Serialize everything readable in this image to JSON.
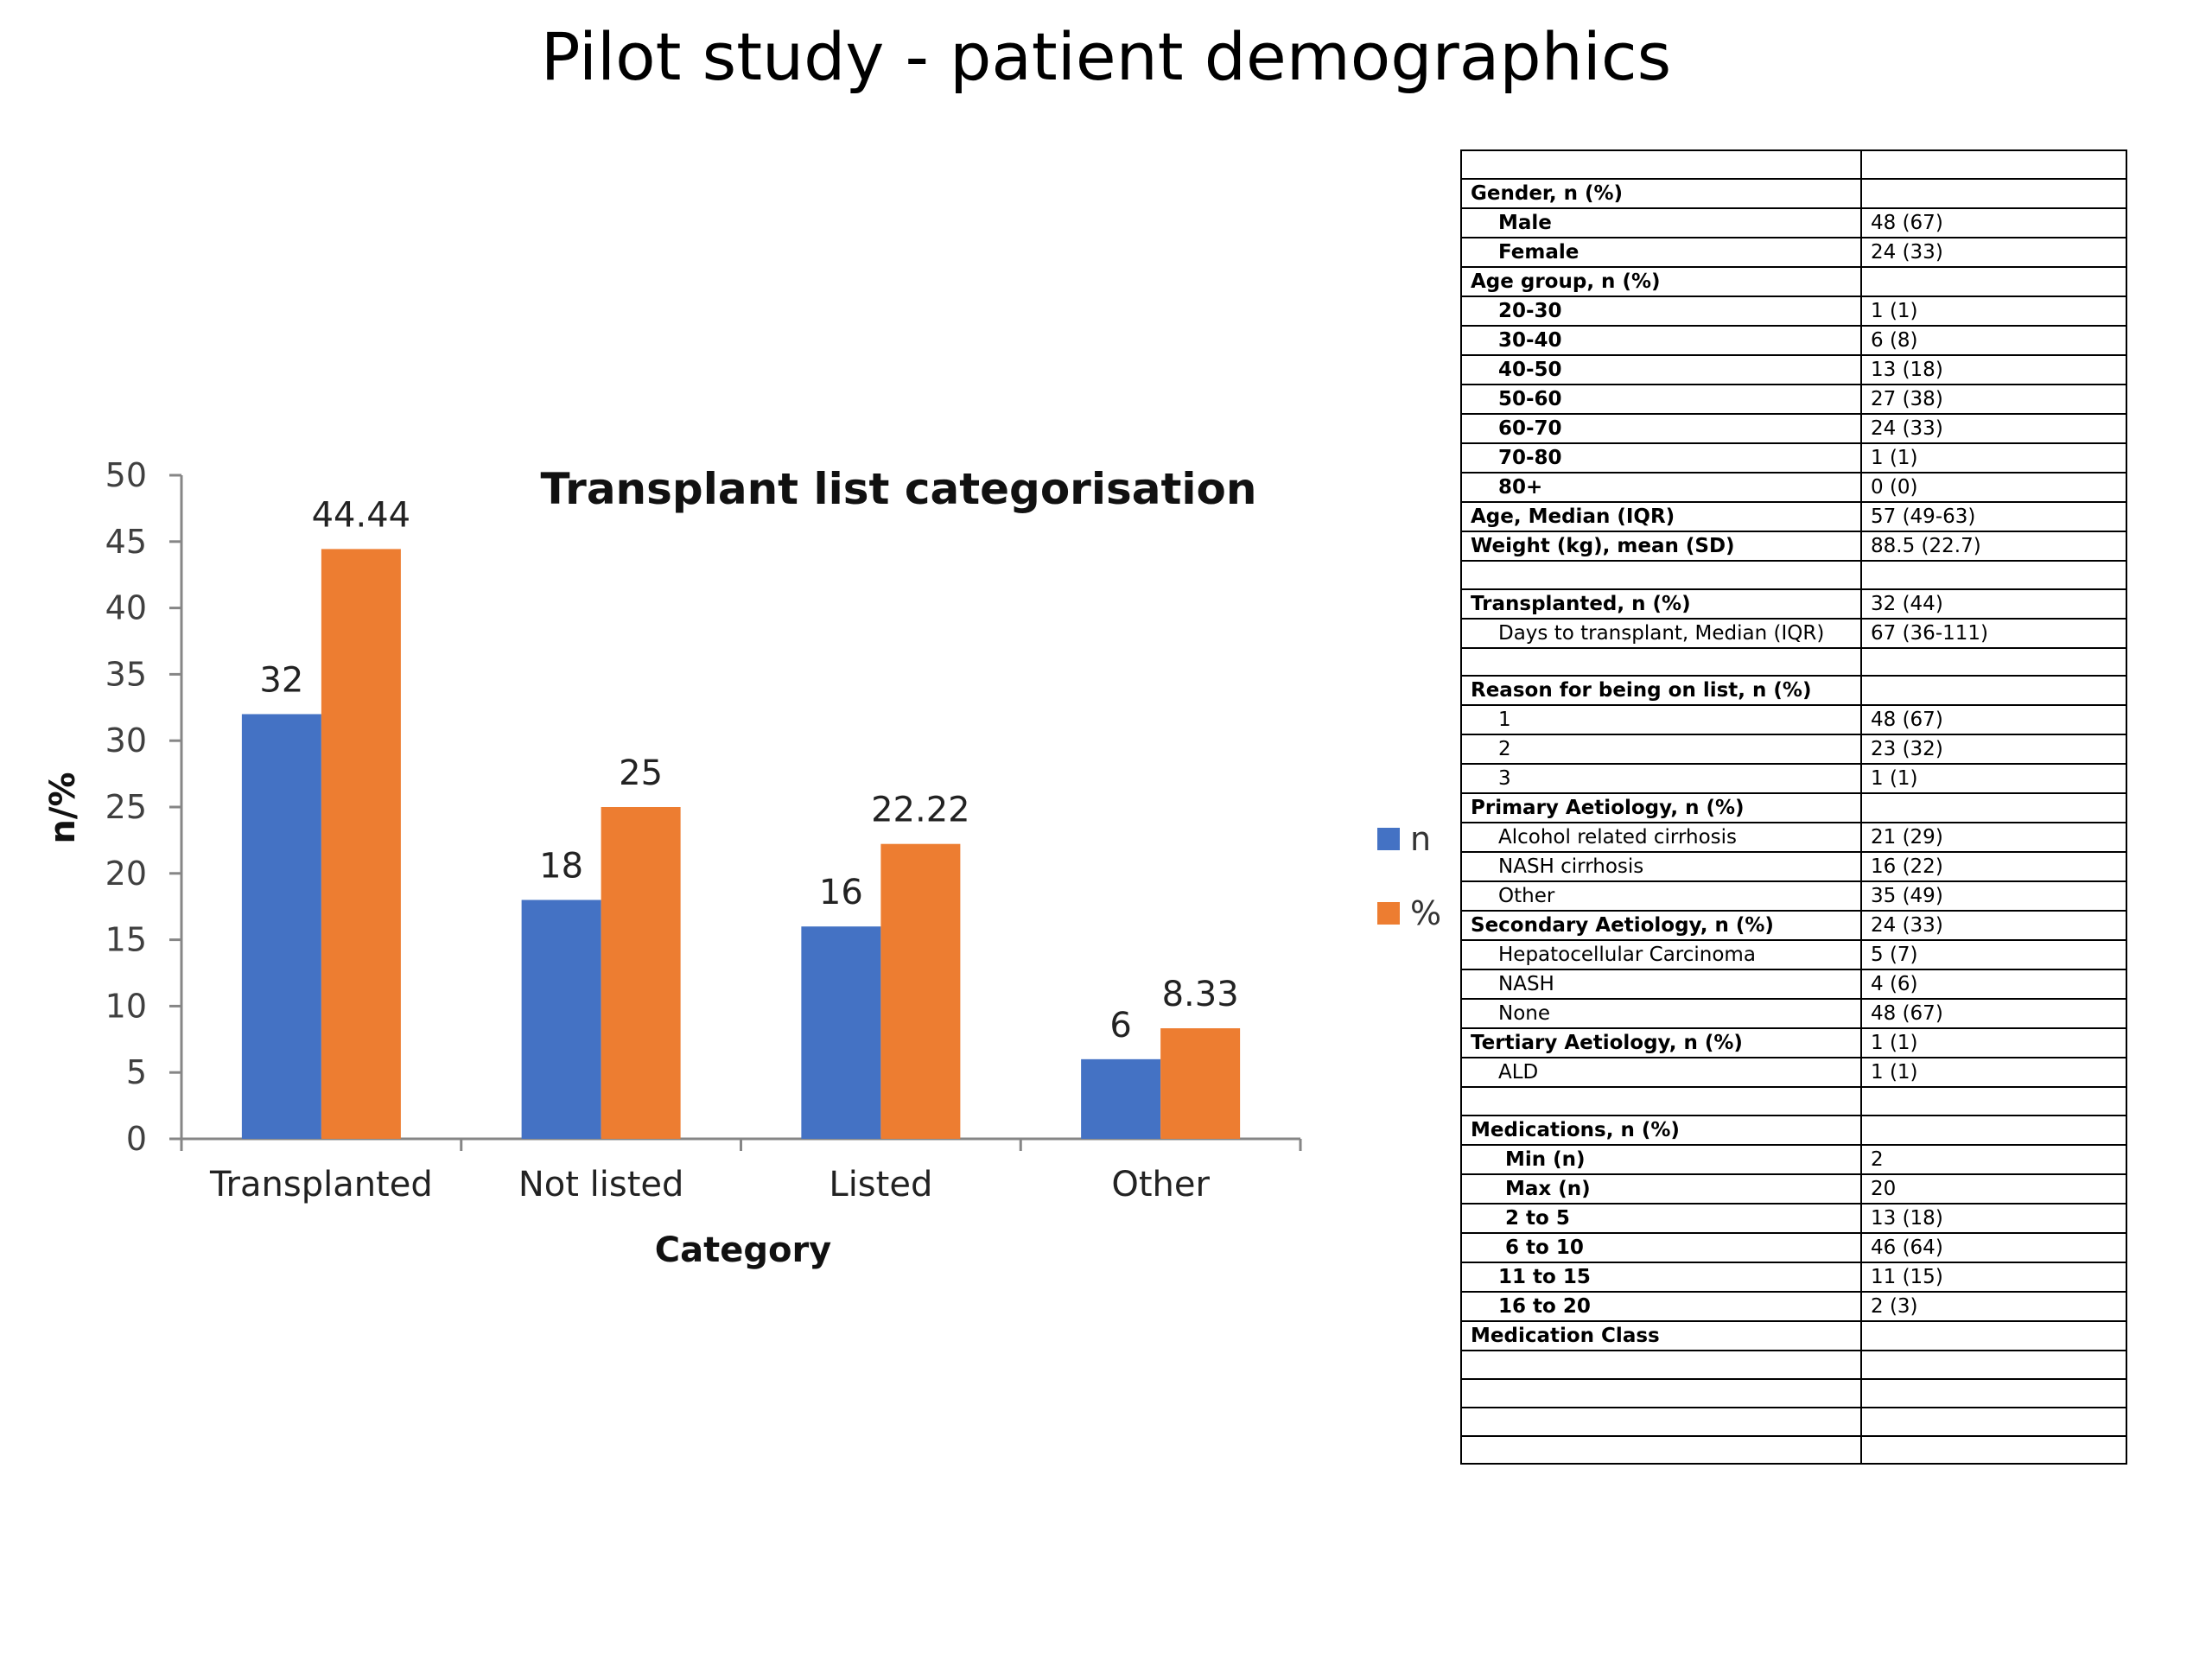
{
  "slide_title": "Pilot study - patient demographics",
  "chart_data": {
    "type": "bar",
    "title": "Transplant list categorisation",
    "xlabel": "Category",
    "ylabel": "n/%",
    "categories": [
      "Transplanted",
      "Not listed",
      "Listed",
      "Other"
    ],
    "series": [
      {
        "name": "n",
        "color": "#4472C4",
        "values": [
          32,
          18,
          16,
          6
        ],
        "labels": [
          "32",
          "18",
          "16",
          "6"
        ]
      },
      {
        "name": "%",
        "color": "#ED7D31",
        "values": [
          44.44,
          25,
          22.22,
          8.33
        ],
        "labels": [
          "44.44",
          "25",
          "22.22",
          "8.33"
        ]
      }
    ],
    "ylim": [
      0,
      50
    ],
    "yticks": [
      0,
      5,
      10,
      15,
      20,
      25,
      30,
      35,
      40,
      45,
      50
    ],
    "grid": false,
    "legend_position": "right"
  },
  "table": {
    "rows": [
      {
        "label": "",
        "value": "",
        "style": "header"
      },
      {
        "label": "Gender, n (%)",
        "value": "",
        "style": "header"
      },
      {
        "label": "Male",
        "value": "48 (67)",
        "style": "bold"
      },
      {
        "label": "Female",
        "value": "24 (33)",
        "style": "bold"
      },
      {
        "label": "Age group, n (%)",
        "value": "",
        "style": "header"
      },
      {
        "label": "20-30",
        "value": "1 (1)",
        "style": "bold"
      },
      {
        "label": "30-40",
        "value": "6 (8)",
        "style": "bold"
      },
      {
        "label": "40-50",
        "value": "13 (18)",
        "style": "bold"
      },
      {
        "label": "50-60",
        "value": "27 (38)",
        "style": "bold"
      },
      {
        "label": "60-70",
        "value": "24 (33)",
        "style": "bold"
      },
      {
        "label": "70-80",
        "value": "1 (1)",
        "style": "bold"
      },
      {
        "label": "80+",
        "value": "0 (0)",
        "style": "bold"
      },
      {
        "label": "Age, Median (IQR)",
        "value": "57 (49-63)",
        "style": "header"
      },
      {
        "label": "Weight (kg), mean (SD)",
        "value": "88.5 (22.7)",
        "style": "header"
      },
      {
        "label": "",
        "value": "",
        "style": "header"
      },
      {
        "label": "Transplanted, n (%)",
        "value": "32 (44)",
        "style": "header"
      },
      {
        "label": "Days to transplant,  Median (IQR)",
        "value": "67 (36-111)",
        "style": "sub"
      },
      {
        "label": "",
        "value": "",
        "style": "header"
      },
      {
        "label": "Reason for being on list, n (%)",
        "value": "",
        "style": "header"
      },
      {
        "label": "1",
        "value": "48 (67)",
        "style": "sub"
      },
      {
        "label": "2",
        "value": "23 (32)",
        "style": "sub"
      },
      {
        "label": "3",
        "value": "1 (1)",
        "style": "sub"
      },
      {
        "label": "Primary Aetiology, n (%)",
        "value": "",
        "style": "header"
      },
      {
        "label": "Alcohol related cirrhosis",
        "value": "21 (29)",
        "style": "sub"
      },
      {
        "label": "NASH cirrhosis",
        "value": "16 (22)",
        "style": "sub"
      },
      {
        "label": "Other",
        "value": "35 (49)",
        "style": "sub"
      },
      {
        "label": "Secondary Aetiology, n (%)",
        "value": "24 (33)",
        "style": "header"
      },
      {
        "label": "Hepatocellular Carcinoma",
        "value": "5 (7)",
        "style": "sub"
      },
      {
        "label": "NASH",
        "value": "4 (6)",
        "style": "sub"
      },
      {
        "label": "None",
        "value": "48 (67)",
        "style": "sub"
      },
      {
        "label": "Tertiary Aetiology, n (%)",
        "value": "1 (1)",
        "style": "header"
      },
      {
        "label": "ALD",
        "value": "1 (1)",
        "style": "sub"
      },
      {
        "label": "",
        "value": "",
        "style": "header"
      },
      {
        "label": "Medications, n (%)",
        "value": "",
        "style": "header"
      },
      {
        "label": "Min (n)",
        "value": "2",
        "style": "bold-tight"
      },
      {
        "label": "Max (n)",
        "value": "20",
        "style": "bold-tight"
      },
      {
        "label": "2 to 5",
        "value": "13 (18)",
        "style": "bold-tight"
      },
      {
        "label": "6 to 10",
        "value": "46 (64)",
        "style": "bold-tight"
      },
      {
        "label": "11 to 15",
        "value": "11 (15)",
        "style": "bold"
      },
      {
        "label": "16 to 20",
        "value": "2 (3)",
        "style": "bold"
      },
      {
        "label": "Medication Class",
        "value": "",
        "style": "header"
      },
      {
        "label": "",
        "value": "",
        "style": "header"
      },
      {
        "label": "",
        "value": "",
        "style": "header"
      },
      {
        "label": "",
        "value": "",
        "style": "header"
      },
      {
        "label": "",
        "value": "",
        "style": "header"
      }
    ]
  }
}
